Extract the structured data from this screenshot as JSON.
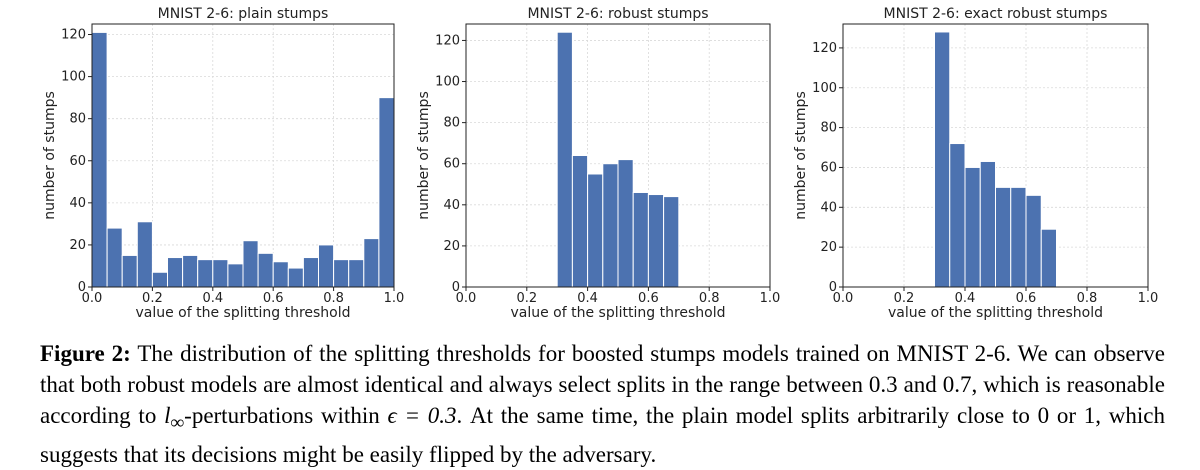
{
  "chart_data": [
    {
      "type": "bar",
      "title": "MNIST 2-6: plain stumps",
      "xlabel": "value of the splitting threshold",
      "ylabel": "number of stumps",
      "xlim": [
        0.0,
        1.0
      ],
      "ylim": [
        0,
        125
      ],
      "xticks": [
        "0.0",
        "0.2",
        "0.4",
        "0.6",
        "0.8",
        "1.0"
      ],
      "yticks": [
        "0",
        "20",
        "40",
        "60",
        "80",
        "100",
        "120"
      ],
      "grid": true,
      "bin_width": 0.05,
      "bin_starts": [
        0.0,
        0.05,
        0.1,
        0.15,
        0.2,
        0.25,
        0.3,
        0.35,
        0.4,
        0.45,
        0.5,
        0.55,
        0.6,
        0.65,
        0.7,
        0.75,
        0.8,
        0.85,
        0.9,
        0.95
      ],
      "values": [
        121,
        28,
        15,
        31,
        7,
        14,
        15,
        13,
        13,
        11,
        22,
        16,
        12,
        9,
        14,
        20,
        13,
        13,
        23,
        90
      ],
      "color": "#4c72b0"
    },
    {
      "type": "bar",
      "title": "MNIST 2-6: robust stumps",
      "xlabel": "value of the splitting threshold",
      "ylabel": "number of stumps",
      "xlim": [
        0.0,
        1.0
      ],
      "ylim": [
        0,
        128
      ],
      "xticks": [
        "0.0",
        "0.2",
        "0.4",
        "0.6",
        "0.8",
        "1.0"
      ],
      "yticks": [
        "0",
        "20",
        "40",
        "60",
        "80",
        "100",
        "120"
      ],
      "grid": true,
      "bin_width": 0.05,
      "bin_starts": [
        0.3,
        0.35,
        0.4,
        0.45,
        0.5,
        0.55,
        0.6,
        0.65
      ],
      "values": [
        124,
        64,
        55,
        60,
        62,
        46,
        45,
        44
      ],
      "color": "#4c72b0"
    },
    {
      "type": "bar",
      "title": "MNIST 2-6: exact robust stumps",
      "xlabel": "value of the splitting threshold",
      "ylabel": "number of stumps",
      "xlim": [
        0.0,
        1.0
      ],
      "ylim": [
        0,
        132
      ],
      "xticks": [
        "0.0",
        "0.2",
        "0.4",
        "0.6",
        "0.8",
        "1.0"
      ],
      "yticks": [
        "0",
        "20",
        "40",
        "60",
        "80",
        "100",
        "120"
      ],
      "grid": true,
      "bin_width": 0.05,
      "bin_starts": [
        0.3,
        0.35,
        0.4,
        0.45,
        0.5,
        0.55,
        0.6,
        0.65
      ],
      "values": [
        128,
        72,
        60,
        63,
        50,
        50,
        46,
        29
      ],
      "color": "#4c72b0"
    }
  ],
  "caption": {
    "label": "Figure 2:",
    "part1": " The distribution of the splitting thresholds for boosted stumps models trained on MNIST 2-6. We can observe that both robust models are almost identical and always select splits in the range between 0.3 and 0.7, which is reasonable according to ",
    "linf": "l",
    "linf_sub": "∞",
    "part2": "-perturbations within ",
    "epsilon": "ϵ = 0.3",
    "part3": ". At the same time, the plain model splits arbitrarily close to 0 or 1, which suggests that its decisions might be easily flipped by the adversary."
  }
}
